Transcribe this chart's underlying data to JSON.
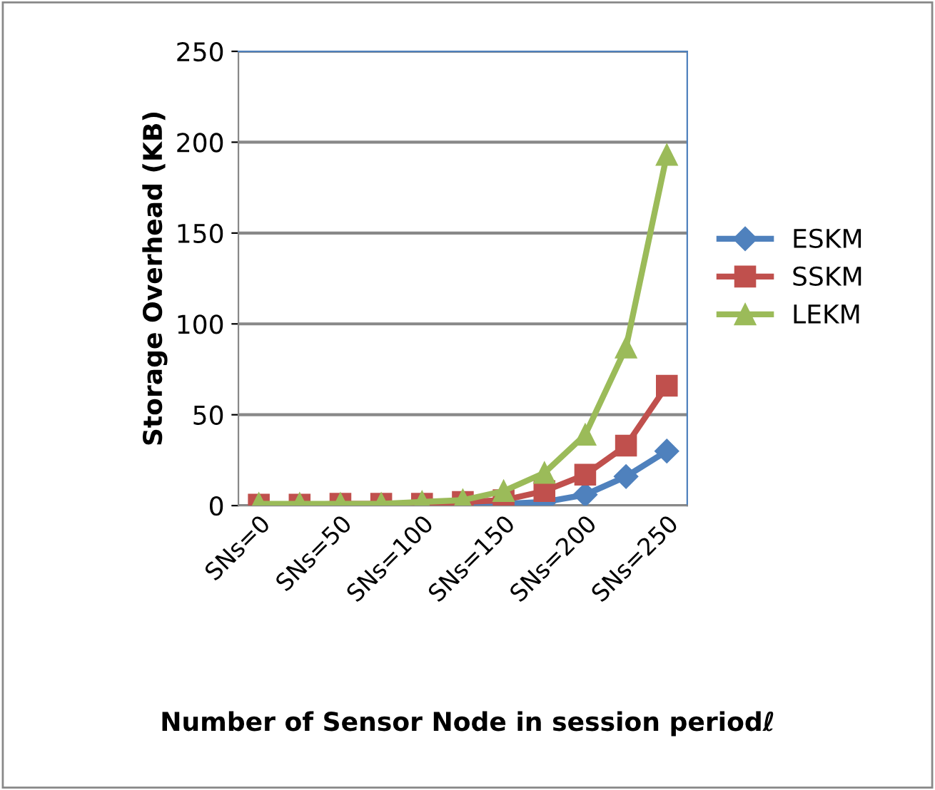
{
  "chart_data": {
    "type": "line",
    "xlabel": "Number of Sensor Node in session periodℓ",
    "ylabel": "Storage Overhead (KB)",
    "categories": [
      "SNs=0",
      null,
      "SNs=50",
      null,
      "SNs=100",
      null,
      "SNs=150",
      null,
      "SNs=200",
      null,
      "SNs=250"
    ],
    "series": [
      {
        "name": "ESKM",
        "color": "#4f81bd",
        "marker": "diamond",
        "values": [
          null,
          null,
          null,
          null,
          0.5,
          0.5,
          1,
          2,
          6,
          16,
          30
        ]
      },
      {
        "name": "SSKM",
        "color": "#c0504d",
        "marker": "square",
        "values": [
          0.5,
          0.5,
          1,
          1,
          1,
          2,
          3,
          8,
          17,
          33,
          66
        ]
      },
      {
        "name": "LEKM",
        "color": "#9bbb59",
        "marker": "triangle",
        "values": [
          1,
          1,
          1,
          1,
          2,
          3,
          8,
          18,
          39,
          87,
          193
        ]
      }
    ],
    "ylim": [
      0,
      250
    ],
    "yticks": [
      0,
      50,
      100,
      150,
      200,
      250
    ],
    "grid": "y",
    "legend": "right"
  }
}
